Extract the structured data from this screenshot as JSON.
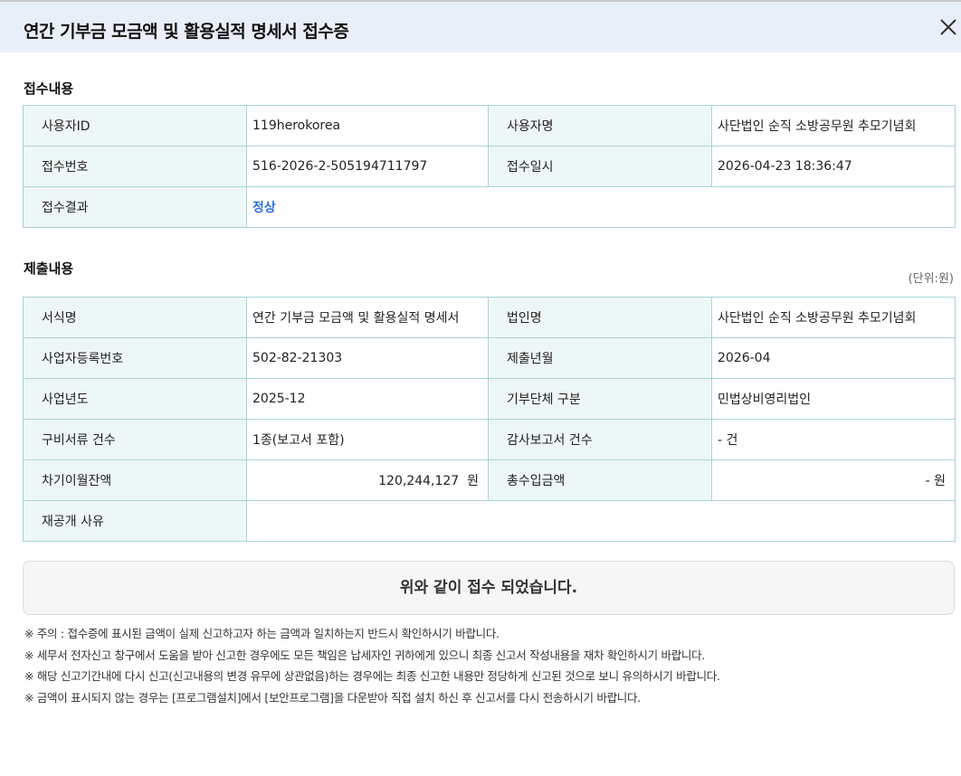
{
  "header": {
    "title": "연간 기부금 모금액 및 활용실적 명세서 접수증",
    "close_icon": "close-icon"
  },
  "receipt": {
    "heading": "접수내용",
    "rows": [
      {
        "l1": "사용자ID",
        "v1": "119herokorea",
        "l2": "사용자명",
        "v2": "사단법인 순직 소방공무원 추모기념회"
      },
      {
        "l1": "접수번호",
        "v1": "516-2026-2-505194711797",
        "l2": "접수일시",
        "v2": "2026-04-23 18:36:47"
      },
      {
        "l1": "접수결과",
        "v1": "정상"
      }
    ],
    "status_color": "#2f6fe0"
  },
  "submission": {
    "heading": "제출내용",
    "unit": "(단위:원)",
    "rows": [
      {
        "l1": "서식명",
        "v1": "연간 기부금 모금액 및 활용실적 명세서",
        "l2": "법인명",
        "v2": "사단법인 순직 소방공무원 추모기념회"
      },
      {
        "l1": "사업자등록번호",
        "v1": "502-82-21303",
        "l2": "제출년월",
        "v2": "2026-04"
      },
      {
        "l1": "사업년도",
        "v1": "2025-12",
        "l2": "기부단체 구분",
        "v2": "민법상비영리법인"
      },
      {
        "l1": "구비서류 건수",
        "v1": "1종(보고서 포함)",
        "l2": "감사보고서 건수",
        "v2": "- 건"
      },
      {
        "l1": "차기이월잔액",
        "v1": "120,244,127  원",
        "l2": "총수입금액",
        "v2": "- 원"
      },
      {
        "l1": "재공개 사유",
        "v1": ""
      }
    ]
  },
  "message": "위와 같이 접수 되었습니다.",
  "notes": [
    "※ 주의 : 접수증에 표시된 금액이 실제 신고하고자 하는 금액과 일치하는지 반드시 확인하시기 바랍니다.",
    "※ 세무서 전자신고 창구에서 도움을 받아 신고한 경우에도 모든 책임은 납세자인 귀하에게 있으니 최종 신고서 작성내용을 재차 확인하시기 바랍니다.",
    "※ 해당 신고기간내에 다시 신고(신고내용의 변경 유무에 상관없음)하는 경우에는 최종 신고한 내용만 정당하게 신고된 것으로 보니 유의하시기 바랍니다.",
    "※ 금액이 표시되지 않는 경우는 [프로그램설치]에서 [보안프로그램]을 다운받아 직접 설치 하신 후 신고서를 다시 전송하시기 바랍니다."
  ]
}
